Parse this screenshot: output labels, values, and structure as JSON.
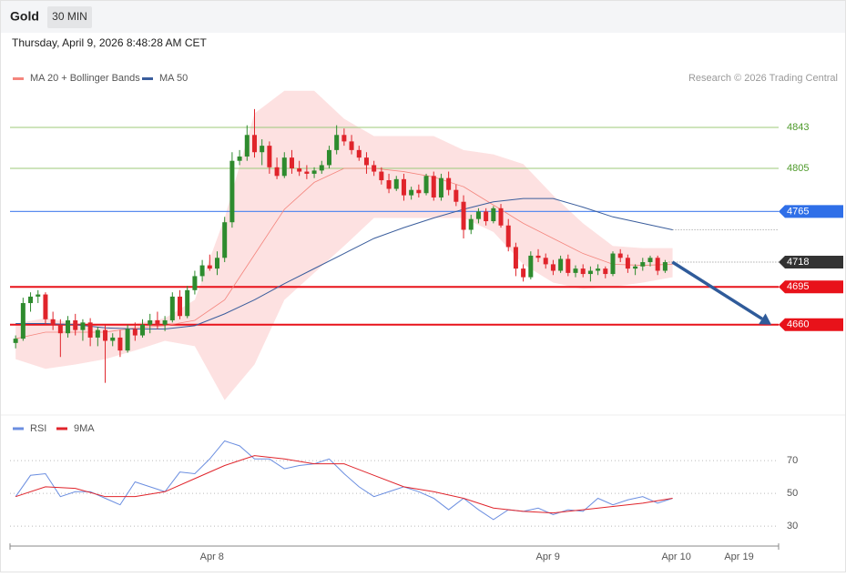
{
  "header": {
    "title": "Gold",
    "timeframe": "30 MIN",
    "timestamp": "Thursday, April 9, 2026 8:48:28 AM CET"
  },
  "chart_data": [
    {
      "type": "candlestick",
      "credit": "Research © 2026 Trading Central",
      "legend": [
        {
          "name": "MA 20 + Bollinger Bands",
          "color": "#f4857d"
        },
        {
          "name": "MA 50",
          "color": "#3a5d9c"
        }
      ],
      "xlim": [
        -0.75,
        102.2
      ],
      "xticks": [
        {
          "value": 26.3,
          "label": "Apr 8"
        },
        {
          "value": 71.3,
          "label": "Apr 9"
        },
        {
          "value": 88.5,
          "label": "Apr 10"
        },
        {
          "value": 96.9,
          "label": "Apr 19"
        }
      ],
      "ylim": [
        4577,
        4881
      ],
      "up_color": "#2e8b2e",
      "down_color": "#e0242b",
      "open": [
        4643,
        4647,
        4680,
        4686,
        4688,
        4665,
        4660,
        4652,
        4664,
        4655,
        4662,
        4648,
        4655,
        4645,
        4648,
        4636,
        4656,
        4650,
        4660,
        4664,
        4660,
        4664,
        4686,
        4668,
        4692,
        4705,
        4715,
        4712,
        4722,
        4755,
        4812,
        4816,
        4836,
        4820,
        4826,
        4806,
        4798,
        4815,
        4805,
        4802,
        4800,
        4803,
        4808,
        4822,
        4836,
        4830,
        4822,
        4815,
        4808,
        4802,
        4794,
        4786,
        4795,
        4780,
        4785,
        4782,
        4798,
        4778,
        4796,
        4785,
        4774,
        4748,
        4758,
        4765,
        4756,
        4768,
        4752,
        4732,
        4712,
        4704,
        4724,
        4722,
        4716,
        4710,
        4721,
        4708,
        4712,
        4707,
        4710,
        4712,
        4707,
        4726,
        4722,
        4712,
        4714,
        4718,
        4722,
        4710
      ],
      "high": [
        4650,
        4685,
        4690,
        4692,
        4690,
        4672,
        4665,
        4668,
        4670,
        4665,
        4666,
        4658,
        4660,
        4652,
        4655,
        4660,
        4662,
        4665,
        4670,
        4672,
        4668,
        4690,
        4692,
        4696,
        4710,
        4720,
        4725,
        4728,
        4760,
        4820,
        4822,
        4845,
        4860,
        4832,
        4830,
        4815,
        4820,
        4822,
        4812,
        4808,
        4806,
        4812,
        4826,
        4845,
        4842,
        4836,
        4826,
        4820,
        4812,
        4806,
        4800,
        4798,
        4800,
        4788,
        4790,
        4800,
        4802,
        4800,
        4802,
        4790,
        4780,
        4762,
        4768,
        4768,
        4770,
        4772,
        4758,
        4736,
        4716,
        4728,
        4730,
        4726,
        4720,
        4724,
        4725,
        4715,
        4716,
        4714,
        4716,
        4714,
        4728,
        4730,
        4725,
        4716,
        4722,
        4724,
        4724,
        4720
      ],
      "low": [
        4638,
        4645,
        4672,
        4680,
        4660,
        4655,
        4630,
        4648,
        4650,
        4645,
        4640,
        4640,
        4606,
        4640,
        4630,
        4634,
        4645,
        4648,
        4652,
        4656,
        4654,
        4662,
        4665,
        4666,
        4688,
        4700,
        4710,
        4706,
        4718,
        4750,
        4808,
        4812,
        4815,
        4808,
        4800,
        4795,
        4796,
        4800,
        4798,
        4795,
        4796,
        4800,
        4805,
        4818,
        4826,
        4818,
        4812,
        4800,
        4798,
        4790,
        4782,
        4784,
        4775,
        4776,
        4778,
        4780,
        4775,
        4775,
        4780,
        4770,
        4740,
        4744,
        4754,
        4752,
        4754,
        4750,
        4728,
        4705,
        4700,
        4702,
        4718,
        4712,
        4706,
        4708,
        4705,
        4704,
        4704,
        4700,
        4706,
        4703,
        4705,
        4718,
        4708,
        4706,
        4710,
        4714,
        4706,
        4708
      ],
      "close": [
        4647,
        4680,
        4686,
        4688,
        4665,
        4660,
        4652,
        4664,
        4655,
        4662,
        4648,
        4655,
        4645,
        4648,
        4636,
        4656,
        4650,
        4660,
        4664,
        4660,
        4664,
        4686,
        4668,
        4692,
        4705,
        4715,
        4712,
        4722,
        4755,
        4812,
        4816,
        4836,
        4820,
        4826,
        4806,
        4798,
        4815,
        4805,
        4802,
        4800,
        4803,
        4808,
        4822,
        4836,
        4830,
        4822,
        4815,
        4808,
        4802,
        4794,
        4786,
        4795,
        4780,
        4785,
        4782,
        4798,
        4778,
        4796,
        4785,
        4774,
        4748,
        4758,
        4765,
        4756,
        4768,
        4752,
        4732,
        4712,
        4704,
        4724,
        4722,
        4716,
        4710,
        4721,
        4708,
        4712,
        4707,
        4710,
        4712,
        4707,
        4726,
        4722,
        4712,
        4714,
        4718,
        4722,
        4710,
        4718
      ],
      "bands": {
        "x": [
          0,
          4,
          8,
          12,
          16,
          20,
          24,
          28,
          32,
          36,
          40,
          44,
          48,
          52,
          56,
          60,
          64,
          68,
          72,
          76,
          80,
          84,
          88
        ],
        "upper": [
          4661,
          4666,
          4661,
          4661,
          4661,
          4666,
          4683,
          4759,
          4856,
          4877,
          4877,
          4851,
          4835,
          4835,
          4835,
          4822,
          4818,
          4809,
          4780,
          4754,
          4733,
          4731,
          4731
        ],
        "lower": [
          4628,
          4619,
          4623,
          4628,
          4636,
          4645,
          4640,
          4590,
          4623,
          4683,
          4708,
          4733,
          4759,
          4759,
          4759,
          4759,
          4746,
          4716,
          4699,
          4693,
          4695,
          4699,
          4704
        ],
        "ma20": [
          4647,
          4653,
          4653,
          4653,
          4657,
          4659,
          4664,
          4683,
          4725,
          4767,
          4792,
          4805,
          4805,
          4802,
          4797,
          4788,
          4771,
          4754,
          4740,
          4726,
          4716,
          4715,
          4716
        ],
        "ma50": [
          4661,
          4661,
          4660,
          4657,
          4656,
          4656,
          4659,
          4670,
          4683,
          4698,
          4712,
          4726,
          4740,
          4750,
          4759,
          4767,
          4774,
          4777,
          4777,
          4769,
          4760,
          4754,
          4748
        ],
        "fill": "#fde1e1"
      },
      "levels": [
        {
          "value": 4843,
          "color": "#9cc97a",
          "text_color": "#4e9a2a",
          "line": "solid",
          "width": 1,
          "box": false
        },
        {
          "value": 4805,
          "color": "#9cc97a",
          "text_color": "#4e9a2a",
          "line": "solid",
          "width": 1,
          "box": false
        },
        {
          "value": 4765,
          "color": "#5b8def",
          "text_color": "#ffffff",
          "box_color": "#2f6fe8",
          "line": "solid",
          "width": 1.2,
          "box": true
        },
        {
          "value": 4718,
          "color": "#888888",
          "text_color": "#ffffff",
          "box_color": "#333333",
          "line": "dotted",
          "width": 1,
          "box": true
        },
        {
          "value": 4695,
          "color": "#e8121a",
          "text_color": "#ffffff",
          "box_color": "#e8121a",
          "line": "solid",
          "width": 2,
          "box": true
        },
        {
          "value": 4660,
          "color": "#e8121a",
          "text_color": "#ffffff",
          "box_color": "#e8121a",
          "line": "solid",
          "width": 2,
          "box": true
        }
      ],
      "arrow": {
        "color": "#2f5b9a",
        "from": 4718,
        "to": 4660
      }
    },
    {
      "type": "line",
      "ylim": [
        20.6,
        95.6
      ],
      "yticks": [
        30,
        50,
        70
      ],
      "grid": true,
      "series": [
        {
          "name": "RSI",
          "color": "#6b8ee0",
          "x": [
            0,
            2,
            4,
            6,
            8,
            10,
            12,
            14,
            16,
            18,
            20,
            22,
            24,
            26,
            28,
            30,
            32,
            34,
            36,
            38,
            40,
            42,
            44,
            46,
            48,
            50,
            52,
            54,
            56,
            58,
            60,
            62,
            64,
            66,
            68,
            70,
            72,
            74,
            76,
            78,
            80,
            82,
            84,
            86,
            88
          ],
          "values": [
            48,
            61,
            62,
            48,
            51,
            51,
            47,
            43,
            57,
            54,
            51,
            63,
            62,
            71,
            82,
            79,
            71,
            71,
            65,
            67,
            68,
            71,
            62,
            54,
            48,
            51,
            54,
            51,
            47,
            40,
            47,
            40,
            34,
            40,
            39,
            41,
            37,
            40,
            39,
            47,
            43,
            46,
            48,
            44,
            47
          ]
        },
        {
          "name": "9MA",
          "color": "#e0242b",
          "x": [
            0,
            4,
            8,
            12,
            16,
            20,
            24,
            28,
            32,
            36,
            40,
            44,
            48,
            52,
            56,
            60,
            64,
            68,
            72,
            76,
            80,
            84,
            88
          ],
          "values": [
            48,
            54,
            53,
            48,
            48,
            51,
            59,
            67,
            73,
            71,
            68,
            68,
            61,
            54,
            51,
            47,
            41,
            39,
            38,
            40,
            42,
            44,
            47
          ]
        }
      ]
    }
  ]
}
